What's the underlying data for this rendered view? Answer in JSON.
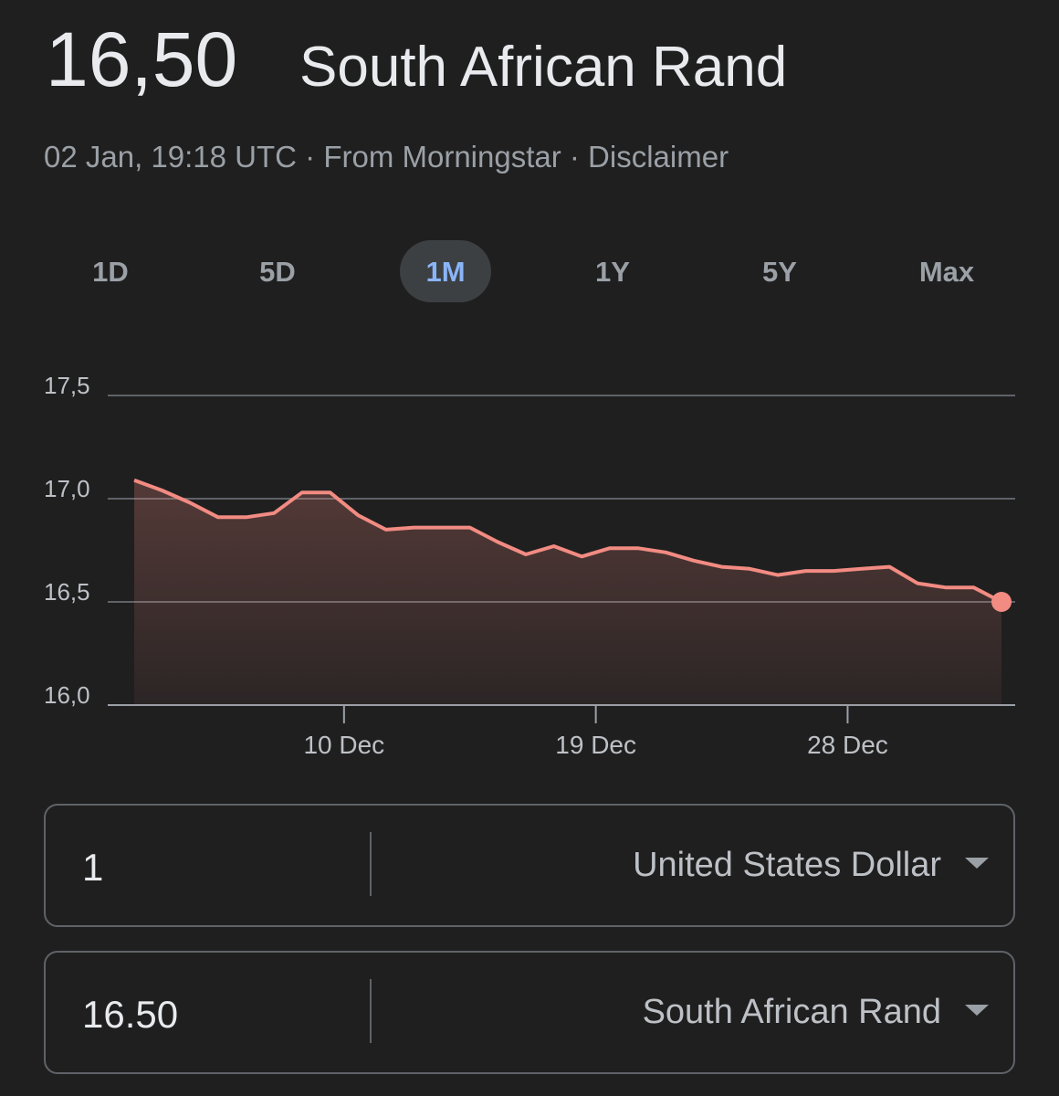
{
  "header": {
    "rate": "16,50",
    "currency": "South African Rand",
    "meta": [
      "02 Jan, 19:18 UTC",
      "From Morningstar",
      "Disclaimer"
    ]
  },
  "tabs": [
    "1D",
    "5D",
    "1M",
    "1Y",
    "5Y",
    "Max"
  ],
  "active_tab": 2,
  "chart_data": {
    "type": "line",
    "categories": [
      null,
      null,
      null,
      null,
      null,
      null,
      null,
      null,
      "10 Dec",
      null,
      null,
      null,
      null,
      null,
      null,
      null,
      null,
      "19 Dec",
      null,
      null,
      null,
      null,
      null,
      null,
      null,
      null,
      "28 Dec",
      null,
      null,
      null,
      null,
      null
    ],
    "series": [
      {
        "color": "#f28b82",
        "values": [
          17.09,
          17.04,
          16.98,
          16.91,
          16.91,
          16.93,
          17.03,
          17.03,
          16.92,
          16.85,
          16.86,
          16.86,
          16.86,
          16.79,
          16.73,
          16.77,
          16.72,
          16.76,
          16.76,
          16.74,
          16.7,
          16.67,
          16.66,
          16.63,
          16.65,
          16.65,
          16.66,
          16.67,
          16.59,
          16.57,
          16.57,
          16.5
        ]
      }
    ],
    "ylim": [
      16,
      17.5
    ],
    "yticks": [
      {
        "value": 16,
        "label": "16,0"
      },
      {
        "value": 16.5,
        "label": "16,5"
      },
      {
        "value": 17,
        "label": "17,0"
      },
      {
        "value": 17.5,
        "label": "17,5"
      }
    ],
    "grid": true
  },
  "converter": [
    {
      "amount": "1",
      "currency": "United States Dollar"
    },
    {
      "amount": "16.50",
      "currency": "South African Rand"
    }
  ]
}
